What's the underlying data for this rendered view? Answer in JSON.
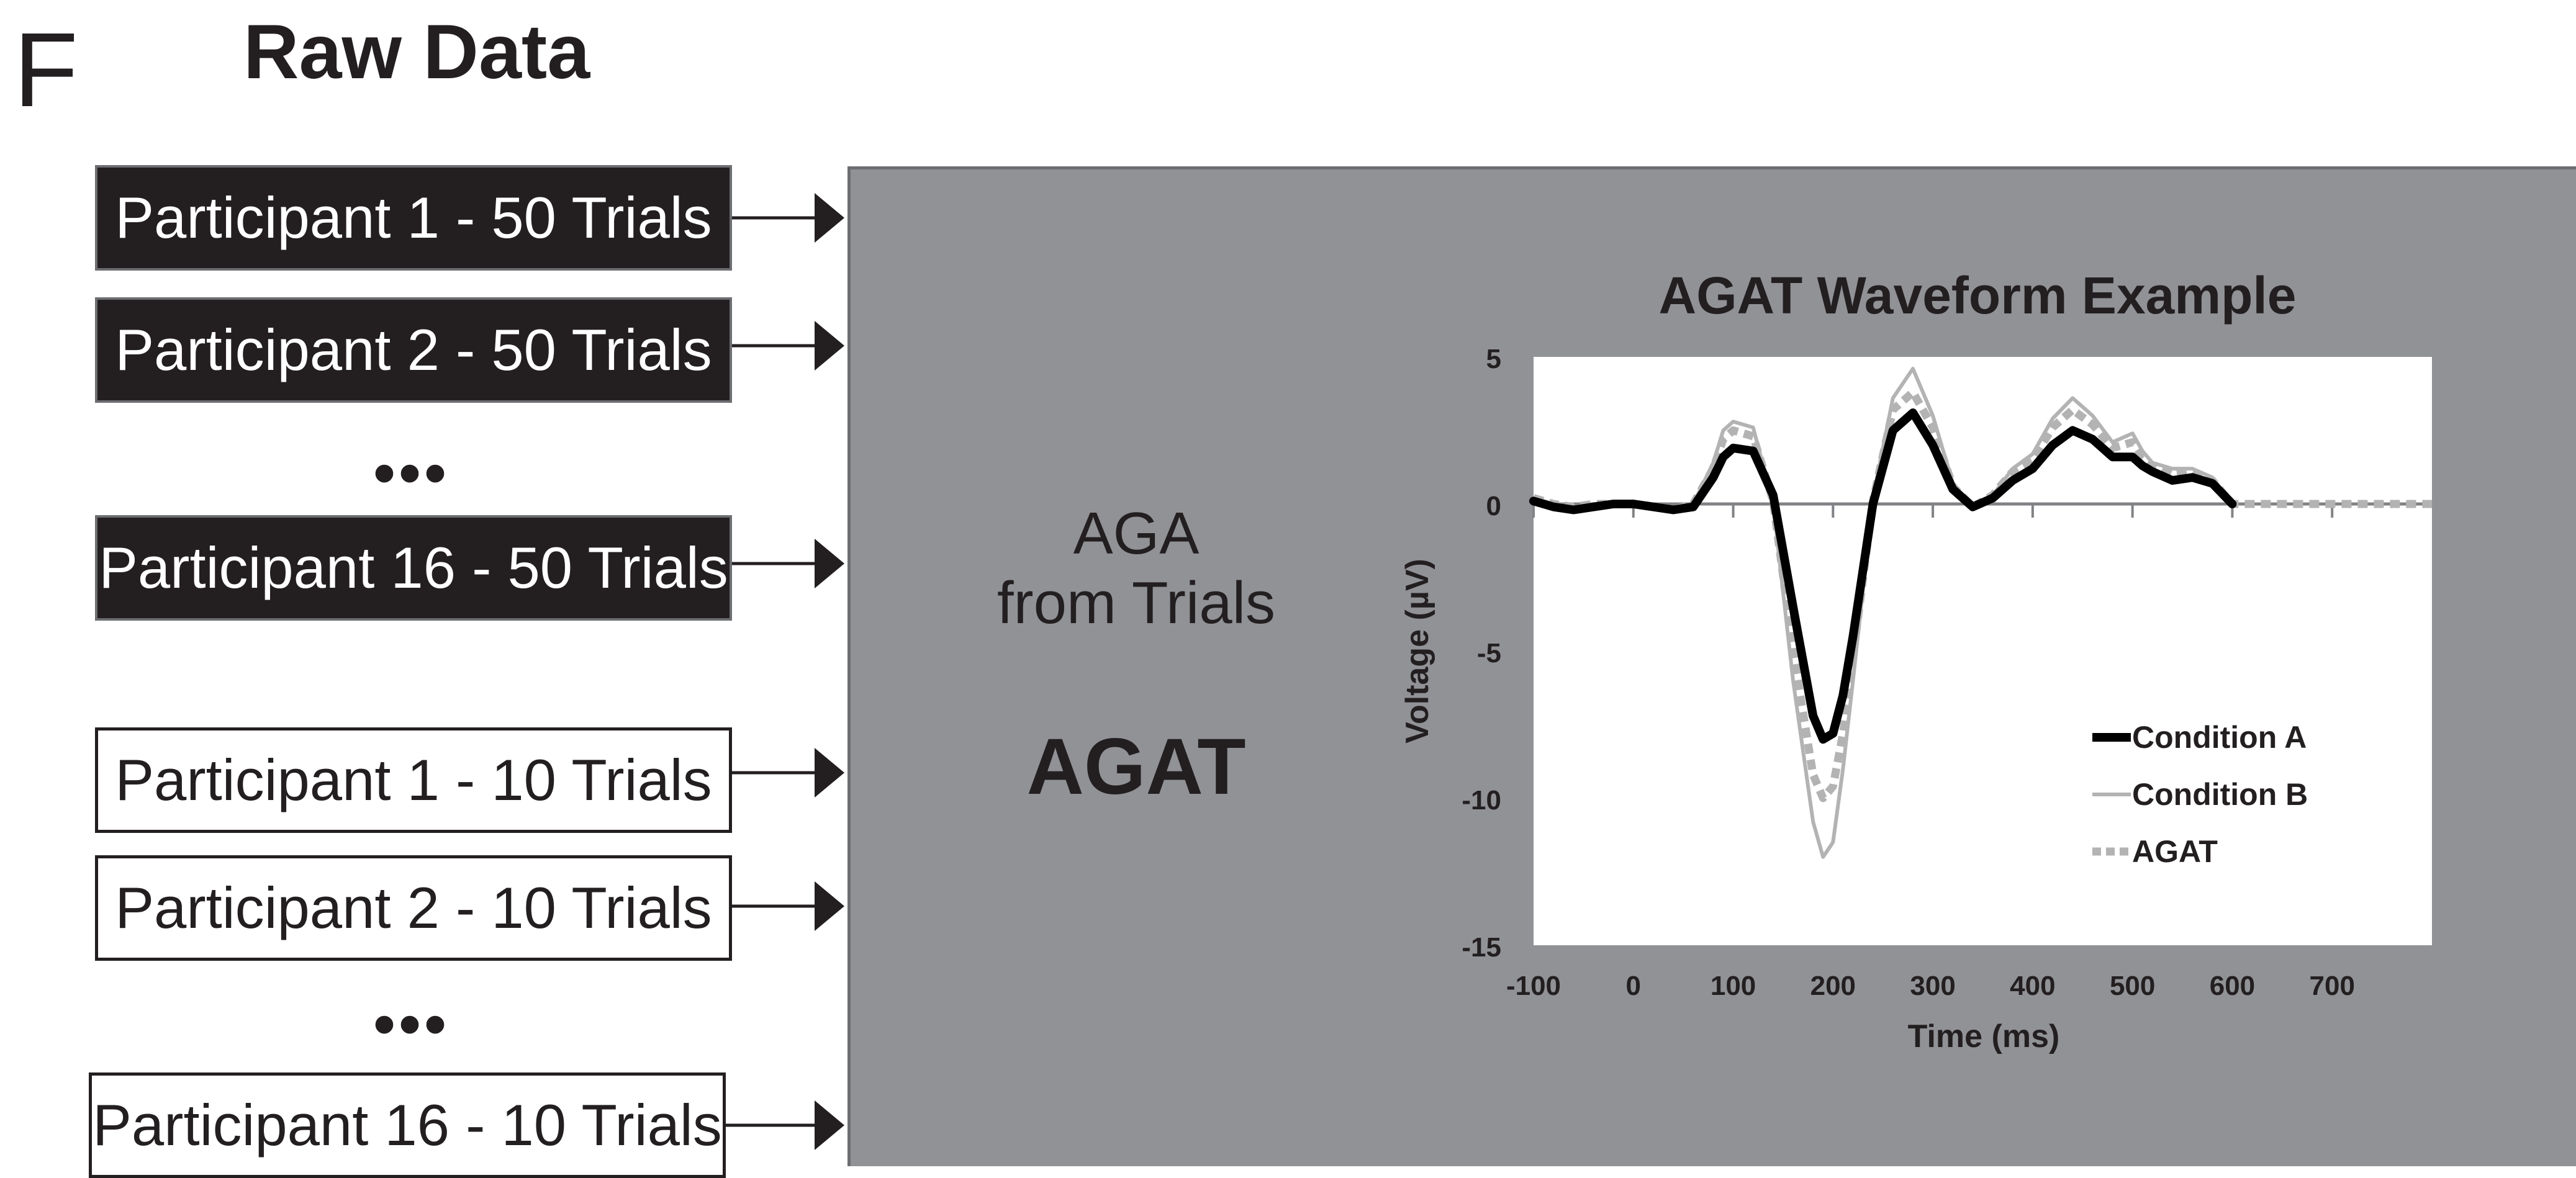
{
  "figure": {
    "panel_letter": "F",
    "title": "Raw Data"
  },
  "trial_boxes_50": [
    {
      "label": "Participant 1 - 50 Trials"
    },
    {
      "label": "Participant 2 - 50 Trials"
    },
    {
      "label": "Participant 16 - 50 Trials"
    }
  ],
  "trial_boxes_10": [
    {
      "label": "Participant 1 - 10 Trials"
    },
    {
      "label": "Participant 2 - 10 Trials"
    },
    {
      "label": "Participant 16 - 10 Trials"
    }
  ],
  "ellipsis": "•••",
  "process": {
    "line1": "AGA",
    "line2": "from Trials",
    "result": "AGAT"
  },
  "colors": {
    "dark_box": "#231f20",
    "panel_gray": "#919296",
    "condition_a": "#000000",
    "condition_b": "#b3b3b3",
    "agat": "#b3b3b3"
  },
  "chart_data": {
    "type": "line",
    "title": "AGAT Waveform Example",
    "xlabel": "Time (ms)",
    "ylabel": "Voltage (µV)",
    "xlim": [
      -100,
      800
    ],
    "ylim": [
      -15,
      5
    ],
    "x_ticks": [
      -100,
      0,
      100,
      200,
      300,
      400,
      500,
      600,
      700
    ],
    "y_ticks": [
      5,
      0,
      -5,
      -10,
      -15
    ],
    "grid": false,
    "legend_position": "bottom-right",
    "x": [
      -100,
      -80,
      -60,
      -40,
      -20,
      0,
      20,
      40,
      60,
      80,
      90,
      100,
      120,
      140,
      160,
      180,
      190,
      200,
      210,
      220,
      240,
      260,
      280,
      300,
      320,
      340,
      360,
      380,
      400,
      420,
      440,
      460,
      480,
      500,
      510,
      520,
      540,
      560,
      580,
      600,
      620,
      640,
      660,
      680,
      700,
      720,
      740,
      760,
      780,
      800
    ],
    "series": [
      {
        "name": "Condition A",
        "style": "solid-thick",
        "values": [
          0.1,
          -0.1,
          -0.2,
          -0.1,
          0.0,
          0.0,
          -0.1,
          -0.2,
          -0.1,
          0.9,
          1.6,
          1.9,
          1.8,
          0.3,
          -3.5,
          -7.2,
          -8.0,
          -7.8,
          -6.5,
          -4.5,
          0.0,
          2.5,
          3.1,
          2.0,
          0.5,
          -0.1,
          0.2,
          0.8,
          1.2,
          2.0,
          2.5,
          2.2,
          1.6,
          1.6,
          1.3,
          1.1,
          0.8,
          0.9,
          0.7,
          0.0,
          null,
          null,
          null,
          null,
          null,
          null,
          null,
          null,
          null,
          null
        ]
      },
      {
        "name": "Condition B",
        "style": "solid-thin",
        "values": [
          0.2,
          0.0,
          -0.1,
          0.0,
          0.0,
          0.0,
          -0.1,
          -0.2,
          0.0,
          1.4,
          2.5,
          2.8,
          2.6,
          0.0,
          -6.0,
          -10.8,
          -12.0,
          -11.5,
          -9.0,
          -6.0,
          0.2,
          3.6,
          4.6,
          3.0,
          0.7,
          -0.1,
          0.3,
          1.2,
          1.7,
          2.9,
          3.6,
          3.0,
          2.1,
          2.4,
          1.8,
          1.4,
          1.2,
          1.2,
          0.9,
          0.0,
          null,
          null,
          null,
          null,
          null,
          null,
          null,
          null,
          null,
          null
        ]
      },
      {
        "name": "AGAT",
        "style": "dashed",
        "values": [
          0.2,
          0.0,
          -0.1,
          0.0,
          0.0,
          0.0,
          -0.1,
          -0.2,
          0.0,
          1.2,
          2.2,
          2.5,
          2.3,
          0.1,
          -5.0,
          -9.2,
          -10.0,
          -9.6,
          -7.8,
          -5.2,
          0.1,
          3.2,
          3.8,
          2.6,
          0.6,
          -0.1,
          0.3,
          1.1,
          1.5,
          2.6,
          3.2,
          2.7,
          1.9,
          2.1,
          1.6,
          1.3,
          1.0,
          1.1,
          0.8,
          0.0,
          0.0,
          0.0,
          0.0,
          0.0,
          0.0,
          0.0,
          0.0,
          0.0,
          0.0,
          0.0
        ]
      }
    ]
  }
}
